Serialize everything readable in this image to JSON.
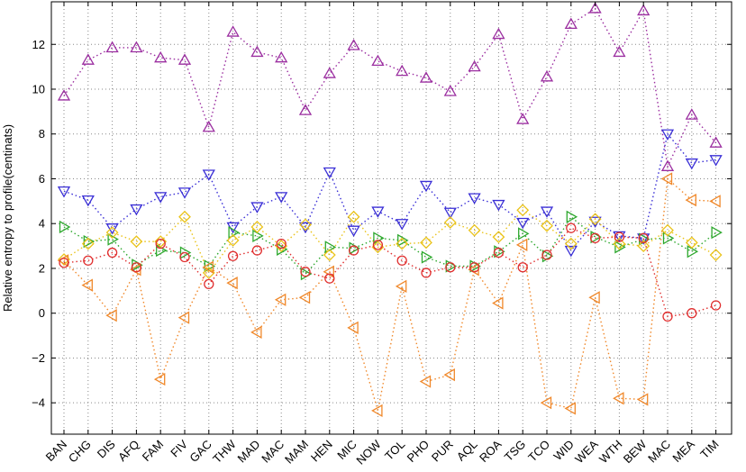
{
  "chart_data": {
    "type": "scatter",
    "title": "",
    "xlabel": "",
    "ylabel": "Relative entropy to profile(centinats)",
    "ylim": [
      -5.4,
      13.9
    ],
    "yticks": [
      -4,
      -2,
      0,
      2,
      4,
      6,
      8,
      10,
      12
    ],
    "grid": true,
    "legend": "none",
    "categories": [
      "BAN",
      "CHG",
      "DIS",
      "AFQ",
      "FAM",
      "FIV",
      "GAC",
      "THW",
      "MAD",
      "MAC",
      "MAM",
      "HEN",
      "MIC",
      "NOW",
      "TOL",
      "PHO",
      "PUR",
      "AQL",
      "ROA",
      "TSG",
      "TCO",
      "WID",
      "WEA",
      "WTH",
      "BEW",
      "MAC",
      "MEA",
      "TIM"
    ],
    "series": [
      {
        "marker": "triangle-up",
        "color": "#9b2ea0",
        "values": [
          9.7,
          11.3,
          11.85,
          11.85,
          11.4,
          11.3,
          8.3,
          12.55,
          11.65,
          11.4,
          9.05,
          10.7,
          11.95,
          11.25,
          10.8,
          10.5,
          9.9,
          11.0,
          12.45,
          8.65,
          10.55,
          12.9,
          13.6,
          11.65,
          13.5,
          6.55,
          8.85,
          7.6
        ]
      },
      {
        "marker": "triangle-down",
        "color": "#3a2fd6",
        "values": [
          5.45,
          5.05,
          3.8,
          4.65,
          5.2,
          5.4,
          6.2,
          3.85,
          4.75,
          5.2,
          3.85,
          6.3,
          3.7,
          4.55,
          4.0,
          5.7,
          4.5,
          5.15,
          4.85,
          4.05,
          4.55,
          2.8,
          4.1,
          3.45,
          3.35,
          8.0,
          6.7,
          6.85
        ]
      },
      {
        "marker": "triangle-right",
        "color": "#2ea82e",
        "values": [
          3.85,
          3.2,
          3.3,
          2.15,
          2.8,
          2.7,
          2.1,
          3.6,
          3.45,
          2.85,
          1.75,
          2.95,
          2.9,
          3.35,
          3.25,
          2.5,
          2.1,
          2.1,
          2.75,
          3.55,
          2.55,
          4.3,
          3.4,
          2.95,
          3.3,
          3.35,
          2.75,
          3.6
        ]
      },
      {
        "marker": "diamond",
        "color": "#eac31a",
        "values": [
          2.4,
          3.1,
          3.6,
          3.2,
          3.2,
          4.3,
          1.8,
          3.25,
          3.85,
          3.0,
          3.95,
          2.6,
          4.3,
          2.95,
          3.1,
          3.15,
          4.05,
          3.7,
          3.4,
          4.6,
          3.9,
          3.1,
          4.2,
          3.1,
          3.0,
          3.7,
          3.15,
          2.6
        ]
      },
      {
        "marker": "triangle-left",
        "color": "#f0882a",
        "values": [
          2.35,
          1.25,
          -0.1,
          1.95,
          -2.95,
          -0.2,
          2.05,
          1.35,
          -0.85,
          0.6,
          0.7,
          1.85,
          -0.65,
          -4.35,
          1.2,
          -3.05,
          -2.75,
          1.95,
          0.45,
          3.05,
          -4.0,
          -4.25,
          0.7,
          -3.8,
          -3.85,
          6.0,
          5.05,
          5.0
        ]
      },
      {
        "marker": "circle",
        "color": "#e02f2f",
        "values": [
          2.25,
          2.35,
          2.7,
          2.05,
          3.1,
          2.5,
          1.3,
          2.55,
          2.8,
          3.1,
          1.85,
          1.55,
          2.8,
          3.05,
          2.35,
          1.8,
          2.05,
          2.05,
          2.7,
          2.05,
          2.6,
          3.8,
          3.35,
          3.4,
          3.35,
          -0.15,
          0.0,
          0.35
        ]
      }
    ]
  }
}
